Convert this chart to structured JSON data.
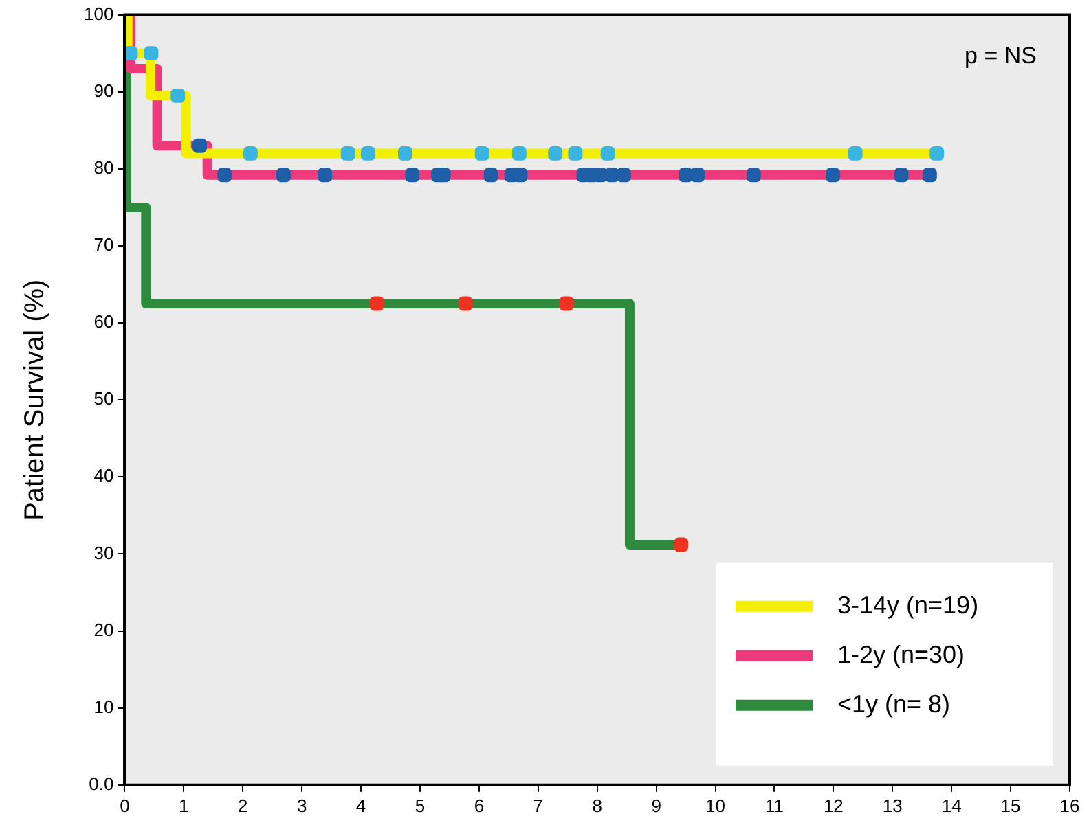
{
  "chart_data": {
    "type": "step",
    "ylabel": "Patient Survival (%)",
    "annotations": [
      "p = NS"
    ],
    "xlim": [
      0,
      16
    ],
    "xticks": [
      0,
      1,
      2,
      3,
      4,
      5,
      6,
      7,
      8,
      9,
      10,
      11,
      12,
      13,
      14,
      15,
      16
    ],
    "ylim": [
      0,
      100
    ],
    "yticks": [
      {
        "value": 0,
        "label": "0.0"
      },
      10,
      20,
      30,
      40,
      50,
      60,
      70,
      80,
      90,
      100
    ],
    "grid": false,
    "legend": "bottom right",
    "series": [
      {
        "name": "3-14y (n=19)",
        "color": "#f2f000",
        "x": [
          0,
          0.05,
          0.44,
          1.04,
          13.75
        ],
        "values": [
          100,
          95,
          89.5,
          82,
          82
        ]
      },
      {
        "name": "1-2y (n=30)",
        "color": "#ee3a7a",
        "x": [
          0,
          0.1,
          0.55,
          1.4,
          13.63
        ],
        "values": [
          100,
          93,
          83,
          79.2,
          79.2
        ]
      },
      {
        "name": "<1y (n= 8)",
        "color": "#2e8b3e",
        "x": [
          0,
          0.03,
          0.36,
          8.55,
          9.42
        ],
        "values": [
          100,
          75,
          62.5,
          31.2,
          31.2
        ]
      },
      {
        "type": "scatter",
        "marker": "square",
        "color": "#3ab4e0",
        "x": [
          0.1,
          0.45,
          0.9,
          2.13,
          3.78,
          4.12,
          4.75,
          6.05,
          6.68,
          7.29,
          7.63,
          8.18,
          12.37,
          13.75
        ],
        "values": [
          95,
          95,
          89.5,
          82,
          82,
          82,
          82,
          82,
          82,
          82,
          82,
          82,
          82,
          82
        ]
      },
      {
        "type": "scatter",
        "marker": "square",
        "color": "#1e5fa8",
        "x": [
          1.27,
          1.69,
          2.69,
          3.39,
          4.87,
          5.31,
          5.4,
          6.2,
          6.55,
          6.7,
          7.77,
          7.9,
          8.05,
          8.25,
          8.45,
          9.5,
          9.7,
          10.65,
          11.99,
          13.15,
          13.63
        ],
        "values": [
          83,
          79.2,
          79.2,
          79.2,
          79.2,
          79.2,
          79.2,
          79.2,
          79.2,
          79.2,
          79.2,
          79.2,
          79.2,
          79.2,
          79.2,
          79.2,
          79.2,
          79.2,
          79.2,
          79.2,
          79.2
        ]
      },
      {
        "type": "scatter",
        "marker": "square",
        "color": "#ee3322",
        "x": [
          4.27,
          5.77,
          7.48,
          9.42
        ],
        "values": [
          62.5,
          62.5,
          62.5,
          31.2
        ]
      }
    ]
  }
}
